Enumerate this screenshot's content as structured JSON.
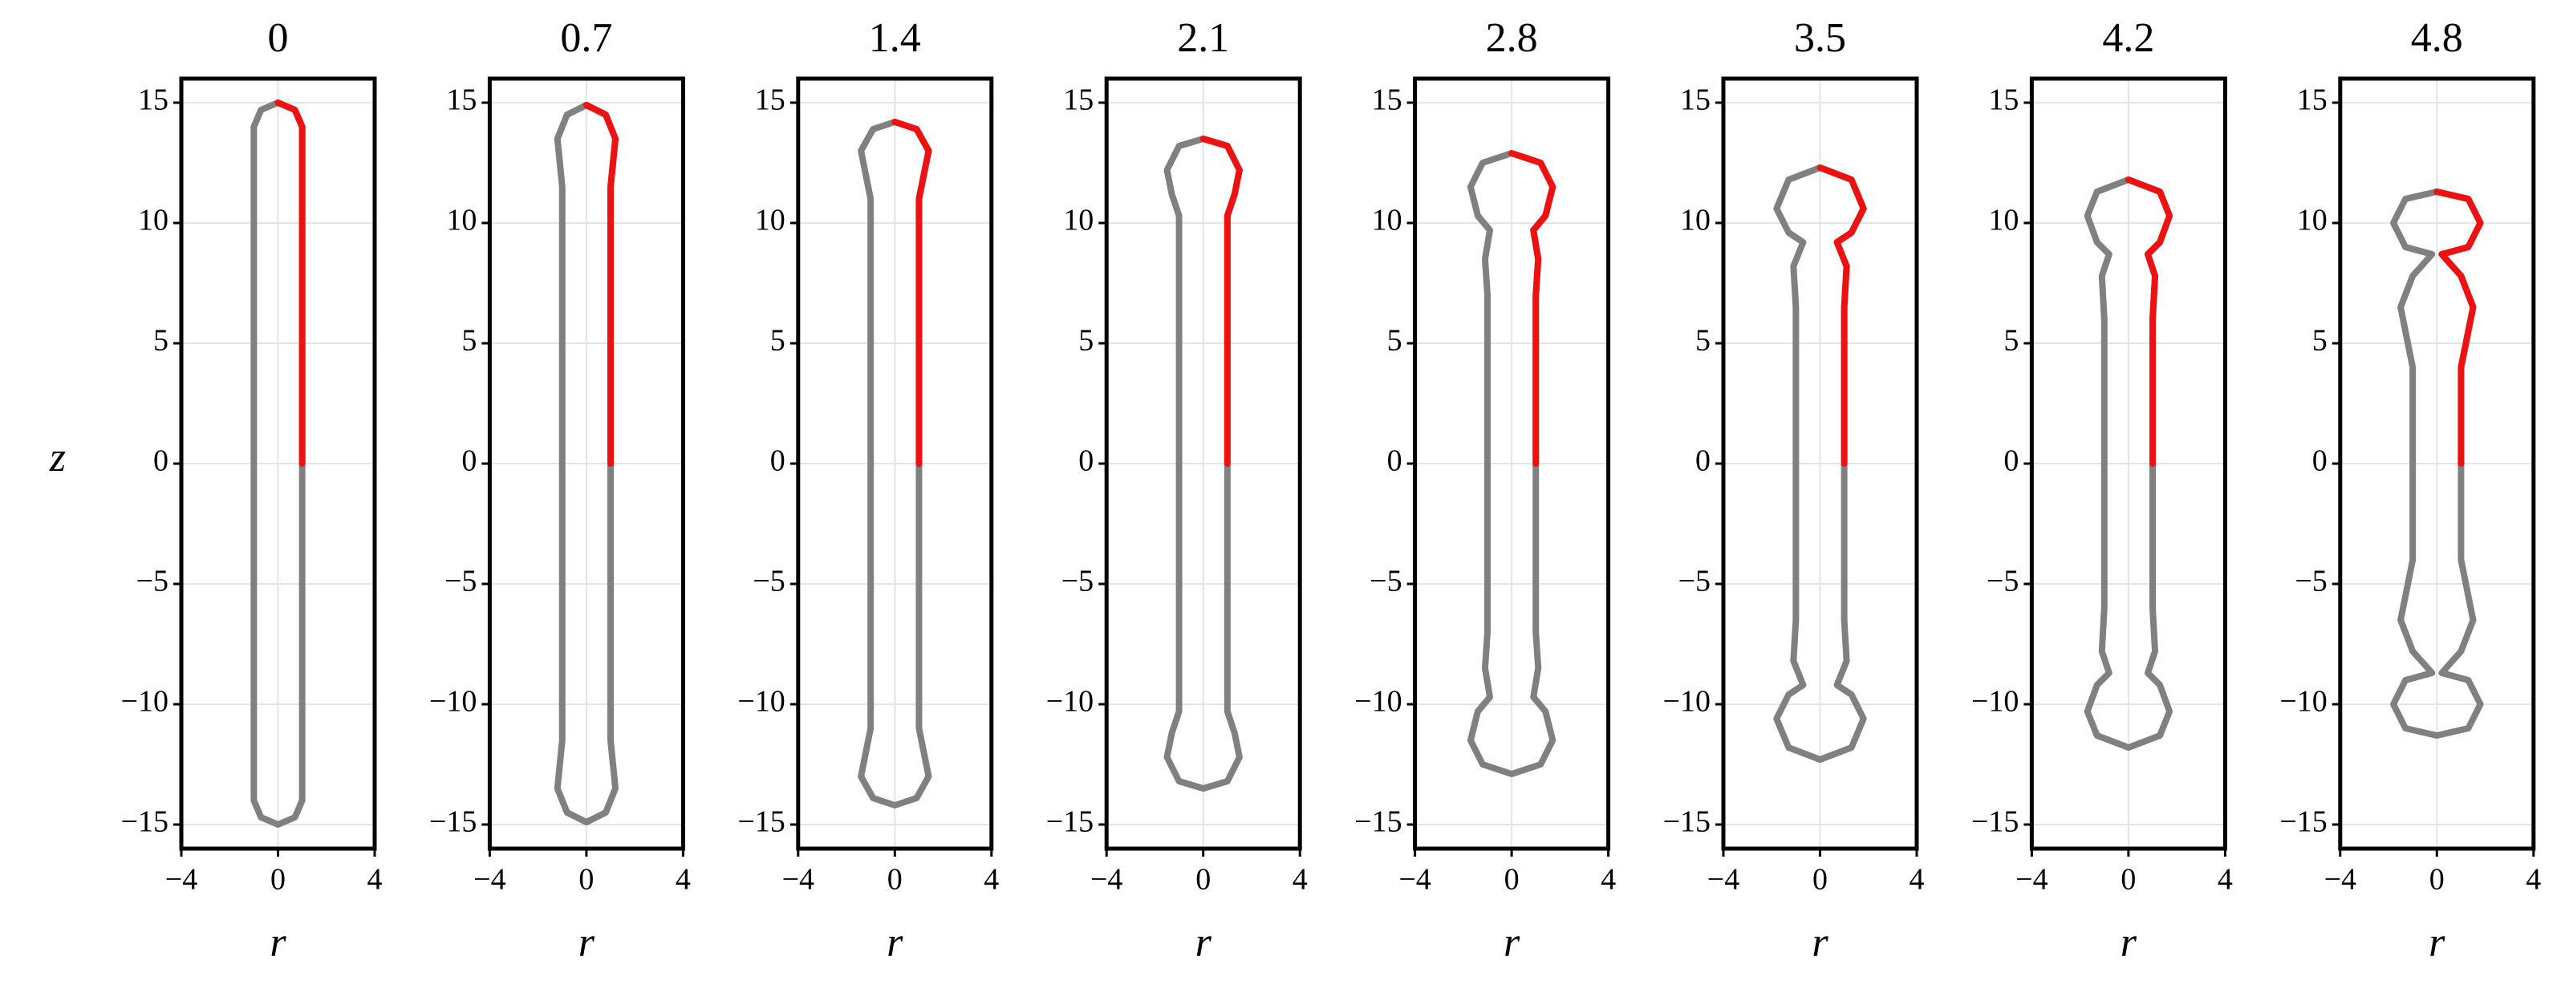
{
  "chart_data": [
    {
      "type": "line",
      "title": "0",
      "xlabel": "r",
      "ylabel": "z",
      "xlim": [
        -4,
        4
      ],
      "ylim": [
        -16,
        16
      ],
      "xticks": [
        {
          "value": -4,
          "label": "−4"
        },
        0,
        4
      ],
      "yticks": [
        {
          "value": -15,
          "label": "−15"
        },
        {
          "value": -10,
          "label": "−10"
        },
        {
          "value": -5,
          "label": "−5"
        },
        0,
        5,
        10,
        15
      ],
      "grid": true,
      "series": [
        {
          "color": "#808080",
          "x": [
            0,
            0.7,
            1,
            1,
            1,
            0.7,
            0,
            -0.7,
            -1,
            -1,
            -1,
            -0.7,
            0
          ],
          "values": [
            15,
            14.7,
            14,
            0,
            -14,
            -14.7,
            -15,
            -14.7,
            -14,
            0,
            14,
            14.7,
            15
          ]
        },
        {
          "color": "#ee1111",
          "x": [
            1,
            1,
            0.7,
            0
          ],
          "values": [
            0,
            14,
            14.7,
            15
          ]
        }
      ]
    },
    {
      "type": "line",
      "title": "0.7",
      "xlabel": "r",
      "xlim": [
        -4,
        4
      ],
      "ylim": [
        -16,
        16
      ],
      "xticks": [
        {
          "value": -4,
          "label": "−4"
        },
        0,
        4
      ],
      "yticks": [
        {
          "value": -15,
          "label": "−15"
        },
        {
          "value": -10,
          "label": "−10"
        },
        {
          "value": -5,
          "label": "−5"
        },
        0,
        5,
        10,
        15
      ],
      "grid": true,
      "series": [
        {
          "color": "#808080",
          "x": [
            0,
            0.8,
            1.2,
            1.1,
            1,
            1,
            1,
            1.1,
            1.2,
            0.8,
            0,
            -0.8,
            -1.2,
            -1.1,
            -1,
            -1,
            -1,
            -1.1,
            -1.2,
            -0.8,
            0
          ],
          "values": [
            14.9,
            14.5,
            13.5,
            12.5,
            11.5,
            0,
            -11.5,
            -12.5,
            -13.5,
            -14.5,
            -14.9,
            -14.5,
            -13.5,
            -12.5,
            -11.5,
            0,
            11.5,
            12.5,
            13.5,
            14.5,
            14.9
          ]
        },
        {
          "color": "#ee1111",
          "x": [
            1,
            1,
            1.1,
            1.2,
            0.8,
            0
          ],
          "values": [
            0,
            11.5,
            12.5,
            13.5,
            14.5,
            14.9
          ]
        }
      ]
    },
    {
      "type": "line",
      "title": "1.4",
      "xlabel": "r",
      "xlim": [
        -4,
        4
      ],
      "ylim": [
        -16,
        16
      ],
      "xticks": [
        {
          "value": -4,
          "label": "−4"
        },
        0,
        4
      ],
      "yticks": [
        {
          "value": -15,
          "label": "−15"
        },
        {
          "value": -10,
          "label": "−10"
        },
        {
          "value": -5,
          "label": "−5"
        },
        0,
        5,
        10,
        15
      ],
      "grid": true,
      "series": [
        {
          "color": "#808080",
          "x": [
            0,
            0.9,
            1.4,
            1.2,
            1,
            1,
            1,
            1.2,
            1.4,
            0.9,
            0,
            -0.9,
            -1.4,
            -1.2,
            -1,
            -1,
            -1,
            -1.2,
            -1.4,
            -0.9,
            0
          ],
          "values": [
            14.2,
            13.9,
            13,
            12,
            11,
            0,
            -11,
            -12,
            -13,
            -13.9,
            -14.2,
            -13.9,
            -13,
            -12,
            -11,
            0,
            11,
            12,
            13,
            13.9,
            14.2
          ]
        },
        {
          "color": "#ee1111",
          "x": [
            1,
            1,
            1.2,
            1.4,
            0.9,
            0
          ],
          "values": [
            0,
            11,
            12,
            13,
            13.9,
            14.2
          ]
        }
      ]
    },
    {
      "type": "line",
      "title": "2.1",
      "xlabel": "r",
      "xlim": [
        -4,
        4
      ],
      "ylim": [
        -16,
        16
      ],
      "xticks": [
        {
          "value": -4,
          "label": "−4"
        },
        0,
        4
      ],
      "yticks": [
        {
          "value": -15,
          "label": "−15"
        },
        {
          "value": -10,
          "label": "−10"
        },
        {
          "value": -5,
          "label": "−5"
        },
        0,
        5,
        10,
        15
      ],
      "grid": true,
      "series": [
        {
          "color": "#808080",
          "x": [
            0,
            1,
            1.5,
            1.3,
            1,
            1,
            1,
            1,
            1,
            1.3,
            1.5,
            1,
            0,
            -1,
            -1.5,
            -1.3,
            -1,
            -1,
            -1,
            -1,
            -1,
            -1.3,
            -1.5,
            -1,
            0
          ],
          "values": [
            13.5,
            13.2,
            12.2,
            11.2,
            10.3,
            9.3,
            0,
            -9.3,
            -10.3,
            -11.2,
            -12.2,
            -13.2,
            -13.5,
            -13.2,
            -12.2,
            -11.2,
            -10.3,
            -9.3,
            0,
            9.3,
            10.3,
            11.2,
            12.2,
            13.2,
            13.5
          ]
        },
        {
          "color": "#ee1111",
          "x": [
            1,
            1,
            1,
            1.3,
            1.5,
            1,
            0
          ],
          "values": [
            0,
            9.3,
            10.3,
            11.2,
            12.2,
            13.2,
            13.5
          ]
        }
      ]
    },
    {
      "type": "line",
      "title": "2.8",
      "xlabel": "r",
      "xlim": [
        -4,
        4
      ],
      "ylim": [
        -16,
        16
      ],
      "xticks": [
        {
          "value": -4,
          "label": "−4"
        },
        0,
        4
      ],
      "yticks": [
        {
          "value": -15,
          "label": "−15"
        },
        {
          "value": -10,
          "label": "−10"
        },
        {
          "value": -5,
          "label": "−5"
        },
        0,
        5,
        10,
        15
      ],
      "grid": true,
      "series": [
        {
          "color": "#808080",
          "x": [
            0,
            1.2,
            1.7,
            1.4,
            0.9,
            1.1,
            1,
            1,
            1,
            1.1,
            0.9,
            1.4,
            1.7,
            1.2,
            0,
            -1.2,
            -1.7,
            -1.4,
            -0.9,
            -1.1,
            -1,
            -1,
            -1,
            -1.1,
            -0.9,
            -1.4,
            -1.7,
            -1.2,
            0
          ],
          "values": [
            12.9,
            12.5,
            11.5,
            10.3,
            9.7,
            8.5,
            7,
            0,
            -7,
            -8.5,
            -9.7,
            -10.3,
            -11.5,
            -12.5,
            -12.9,
            -12.5,
            -11.5,
            -10.3,
            -9.7,
            -8.5,
            -7,
            0,
            7,
            8.5,
            9.7,
            10.3,
            11.5,
            12.5,
            12.9
          ]
        },
        {
          "color": "#ee1111",
          "x": [
            1,
            1,
            1.1,
            0.9,
            1.4,
            1.7,
            1.2,
            0
          ],
          "values": [
            0,
            7,
            8.5,
            9.7,
            10.3,
            11.5,
            12.5,
            12.9
          ]
        }
      ]
    },
    {
      "type": "line",
      "title": "3.5",
      "xlabel": "r",
      "xlim": [
        -4,
        4
      ],
      "ylim": [
        -16,
        16
      ],
      "xticks": [
        {
          "value": -4,
          "label": "−4"
        },
        0,
        4
      ],
      "yticks": [
        {
          "value": -15,
          "label": "−15"
        },
        {
          "value": -10,
          "label": "−10"
        },
        {
          "value": -5,
          "label": "−5"
        },
        0,
        5,
        10,
        15
      ],
      "grid": true,
      "series": [
        {
          "color": "#808080",
          "x": [
            0,
            1.3,
            1.8,
            1.3,
            0.7,
            1.1,
            1,
            1,
            1,
            1.1,
            0.7,
            1.3,
            1.8,
            1.3,
            0,
            -1.3,
            -1.8,
            -1.3,
            -0.7,
            -1.1,
            -1,
            -1,
            -1,
            -1.1,
            -0.7,
            -1.3,
            -1.8,
            -1.3,
            0
          ],
          "values": [
            12.3,
            11.8,
            10.6,
            9.6,
            9.2,
            8.2,
            6.5,
            0,
            -6.5,
            -8.2,
            -9.2,
            -9.6,
            -10.6,
            -11.8,
            -12.3,
            -11.8,
            -10.6,
            -9.6,
            -9.2,
            -8.2,
            -6.5,
            0,
            6.5,
            8.2,
            9.2,
            9.6,
            10.6,
            11.8,
            12.3
          ]
        },
        {
          "color": "#ee1111",
          "x": [
            1,
            1,
            1.1,
            0.7,
            1.3,
            1.8,
            1.3,
            0
          ],
          "values": [
            0,
            6.5,
            8.2,
            9.2,
            9.6,
            10.6,
            11.8,
            12.3
          ]
        }
      ]
    },
    {
      "type": "line",
      "title": "4.2",
      "xlabel": "r",
      "xlim": [
        -4,
        4
      ],
      "ylim": [
        -16,
        16
      ],
      "xticks": [
        {
          "value": -4,
          "label": "−4"
        },
        0,
        4
      ],
      "yticks": [
        {
          "value": -15,
          "label": "−15"
        },
        {
          "value": -10,
          "label": "−10"
        },
        {
          "value": -5,
          "label": "−5"
        },
        0,
        5,
        10,
        15
      ],
      "grid": true,
      "series": [
        {
          "color": "#808080",
          "x": [
            0,
            1.3,
            1.7,
            1.3,
            0.8,
            1.1,
            1,
            1,
            1,
            1.1,
            0.8,
            1.3,
            1.7,
            1.3,
            0,
            -1.3,
            -1.7,
            -1.3,
            -0.8,
            -1.1,
            -1,
            -1,
            -1,
            -1.1,
            -0.8,
            -1.3,
            -1.7,
            -1.3,
            0
          ],
          "values": [
            11.8,
            11.3,
            10.3,
            9.2,
            8.7,
            7.8,
            6,
            0,
            -6,
            -7.8,
            -8.7,
            -9.2,
            -10.3,
            -11.3,
            -11.8,
            -11.3,
            -10.3,
            -9.2,
            -8.7,
            -7.8,
            -6,
            0,
            6,
            7.8,
            8.7,
            9.2,
            10.3,
            11.3,
            11.8
          ]
        },
        {
          "color": "#ee1111",
          "x": [
            1,
            1,
            1.1,
            0.8,
            1.3,
            1.7,
            1.3,
            0
          ],
          "values": [
            0,
            6,
            7.8,
            8.7,
            9.2,
            10.3,
            11.3,
            11.8
          ]
        }
      ]
    },
    {
      "type": "line",
      "title": "4.8",
      "xlabel": "r",
      "xlim": [
        -4,
        4
      ],
      "ylim": [
        -16,
        16
      ],
      "xticks": [
        {
          "value": -4,
          "label": "−4"
        },
        0,
        4
      ],
      "yticks": [
        {
          "value": -15,
          "label": "−15"
        },
        {
          "value": -10,
          "label": "−10"
        },
        {
          "value": -5,
          "label": "−5"
        },
        0,
        5,
        10,
        15
      ],
      "grid": true,
      "series": [
        {
          "color": "#808080",
          "x": [
            0,
            1.3,
            1.8,
            1.3,
            0.2,
            1,
            1.5,
            1.2,
            1,
            1,
            1,
            1.2,
            1.5,
            1,
            0.2,
            1.3,
            1.8,
            1.3,
            0,
            -1.3,
            -1.8,
            -1.3,
            -0.2,
            -1,
            -1.5,
            -1.2,
            -1,
            -1,
            -1,
            -1.2,
            -1.5,
            -1,
            -0.2,
            -1.3,
            -1.8,
            -1.3,
            0
          ],
          "values": [
            11.3,
            11,
            10,
            9,
            8.7,
            7.8,
            6.5,
            5,
            4,
            0,
            -4,
            -5,
            -6.5,
            -7.8,
            -8.7,
            -9,
            -10,
            -11,
            -11.3,
            -11,
            -10,
            -9,
            -8.7,
            -7.8,
            -6.5,
            -5,
            -4,
            0,
            4,
            5,
            6.5,
            7.8,
            8.7,
            9,
            10,
            11,
            11.3
          ]
        },
        {
          "color": "#ee1111",
          "x": [
            1,
            1,
            1.2,
            1.5,
            1,
            0.2,
            1.3,
            1.8,
            1.3,
            0
          ],
          "values": [
            0,
            4,
            5,
            6.5,
            7.8,
            8.7,
            9,
            10,
            11,
            11.3
          ]
        }
      ]
    }
  ]
}
